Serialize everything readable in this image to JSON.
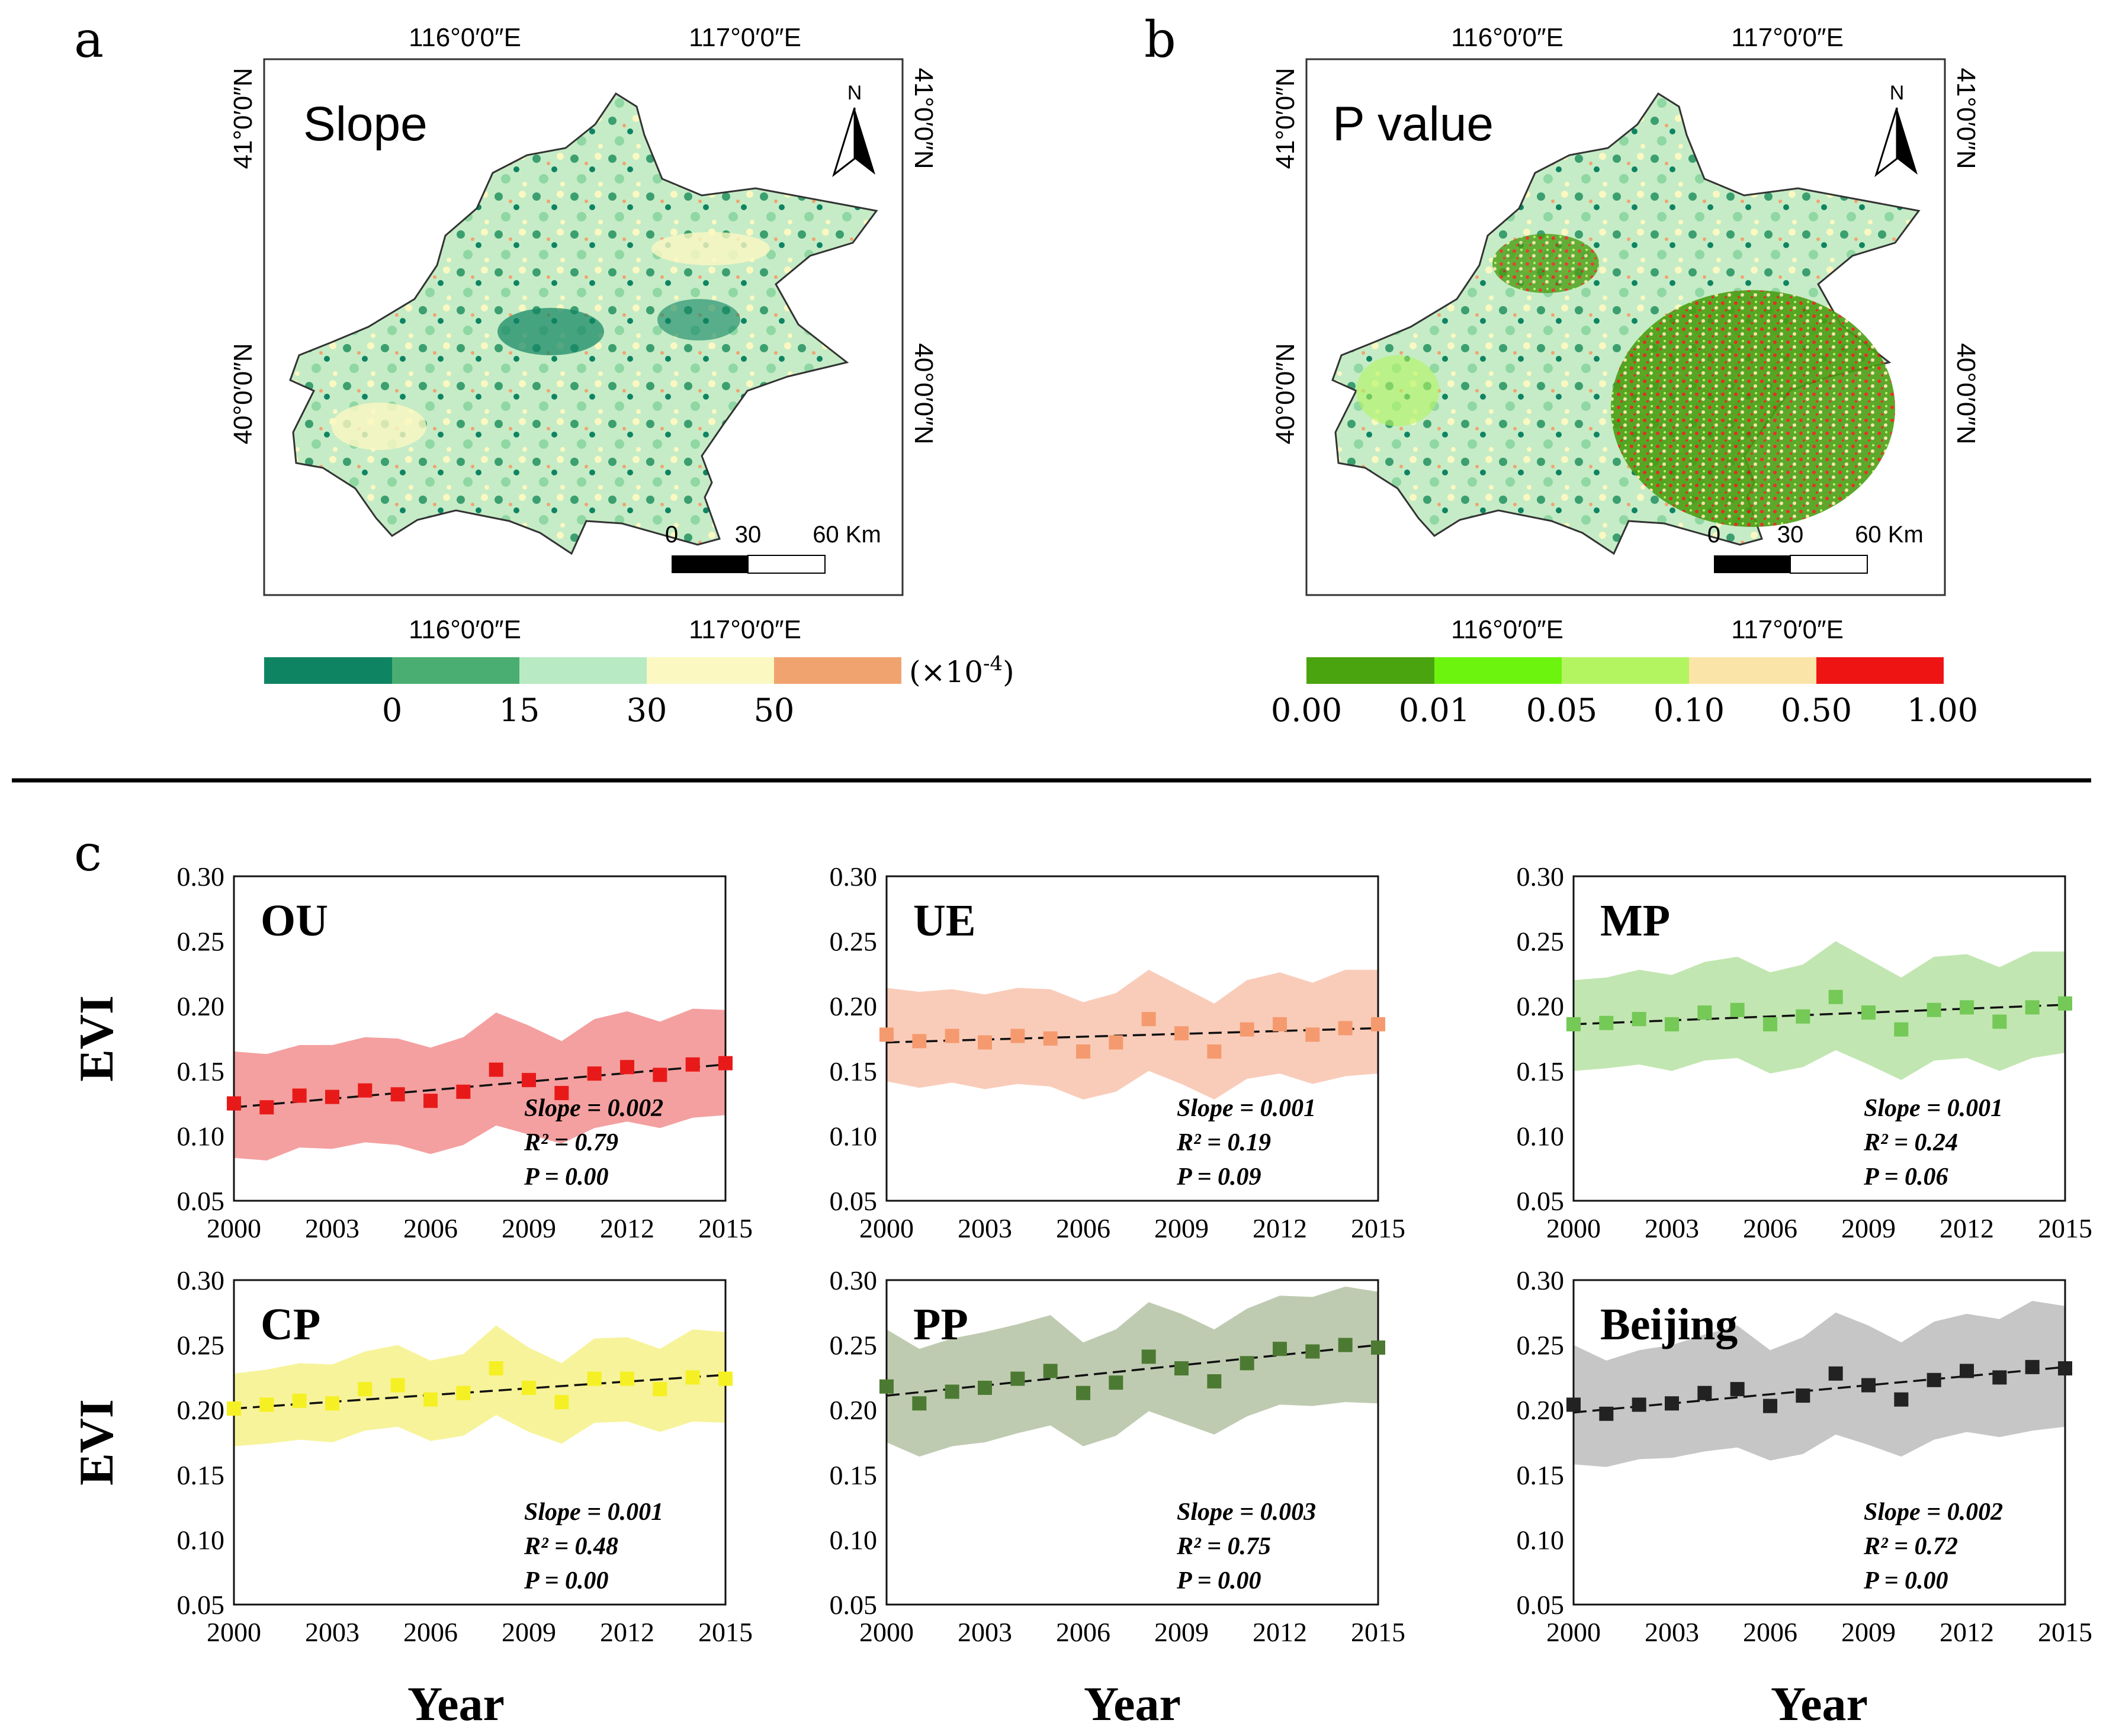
{
  "panels": {
    "a": {
      "letter": "a",
      "title": "Slope",
      "north": "N",
      "lon_labels": [
        "116°0′0″E",
        "117°0′0″E"
      ],
      "lat_labels": [
        "41°0′0″N",
        "40°0′0″N"
      ],
      "scale": {
        "ticks": [
          "0",
          "30",
          "60 Km"
        ]
      },
      "legend": {
        "colors": [
          "#0f8463",
          "#4aad72",
          "#b8eac3",
          "#fbf8c2",
          "#f1a36f"
        ],
        "tick_labels": [
          "0",
          "15",
          "30",
          "50"
        ],
        "unit": "(×10",
        "unit_exp": "-4",
        "unit_close": ")"
      }
    },
    "b": {
      "letter": "b",
      "title": "P value",
      "north": "N",
      "lon_labels": [
        "116°0′0″E",
        "117°0′0″E"
      ],
      "lat_labels": [
        "41°0′0″N",
        "40°0′0″N"
      ],
      "scale": {
        "ticks": [
          "0",
          "30",
          "60 Km"
        ]
      },
      "legend": {
        "colors": [
          "#4aa40f",
          "#6df40e",
          "#b3f561",
          "#fbe4a8",
          "#ef1414"
        ],
        "tick_labels": [
          "0.00",
          "0.01",
          "0.05",
          "0.10",
          "0.50",
          "1.00"
        ]
      }
    },
    "c": {
      "letter": "c"
    }
  },
  "colors": {
    "map_base_a": "#c5ecc6",
    "map_base_b": "#4a9e12"
  },
  "chart_data": [
    {
      "type": "scatter",
      "title": "OU",
      "xlabel": "Year",
      "ylabel": "EVI",
      "ylim": [
        0.05,
        0.3
      ],
      "x": [
        2000,
        2001,
        2002,
        2003,
        2004,
        2005,
        2006,
        2007,
        2008,
        2009,
        2010,
        2011,
        2012,
        2013,
        2014,
        2015
      ],
      "values": [
        0.125,
        0.122,
        0.131,
        0.13,
        0.135,
        0.132,
        0.127,
        0.134,
        0.151,
        0.143,
        0.133,
        0.148,
        0.153,
        0.147,
        0.155,
        0.156
      ],
      "band_upper": [
        0.165,
        0.163,
        0.17,
        0.17,
        0.176,
        0.175,
        0.168,
        0.176,
        0.195,
        0.185,
        0.173,
        0.19,
        0.196,
        0.188,
        0.198,
        0.197
      ],
      "band_lower": [
        0.083,
        0.081,
        0.091,
        0.09,
        0.095,
        0.093,
        0.086,
        0.093,
        0.108,
        0.101,
        0.094,
        0.106,
        0.111,
        0.106,
        0.114,
        0.116
      ],
      "trend": [
        0.122,
        0.155
      ],
      "annotations": [
        "Slope = 0.002",
        "R² = 0.79",
        "P = 0.00"
      ],
      "color": "#e81a19",
      "band_color": "#f4a0a0"
    },
    {
      "type": "scatter",
      "title": "UE",
      "xlabel": "Year",
      "ylabel": "EVI",
      "ylim": [
        0.05,
        0.3
      ],
      "x": [
        2000,
        2001,
        2002,
        2003,
        2004,
        2005,
        2006,
        2007,
        2008,
        2009,
        2010,
        2011,
        2012,
        2013,
        2014,
        2015
      ],
      "values": [
        0.178,
        0.173,
        0.177,
        0.172,
        0.177,
        0.175,
        0.165,
        0.172,
        0.19,
        0.179,
        0.165,
        0.182,
        0.186,
        0.178,
        0.183,
        0.186
      ],
      "band_upper": [
        0.214,
        0.211,
        0.213,
        0.209,
        0.214,
        0.213,
        0.203,
        0.21,
        0.228,
        0.215,
        0.202,
        0.22,
        0.226,
        0.218,
        0.228,
        0.228
      ],
      "band_lower": [
        0.142,
        0.137,
        0.141,
        0.136,
        0.14,
        0.138,
        0.128,
        0.134,
        0.15,
        0.14,
        0.128,
        0.144,
        0.148,
        0.14,
        0.146,
        0.148
      ],
      "trend": [
        0.172,
        0.183
      ],
      "annotations": [
        "Slope = 0.001",
        "R² = 0.19",
        "P = 0.09"
      ],
      "color": "#f59a6f",
      "band_color": "#f9ccb9"
    },
    {
      "type": "scatter",
      "title": "MP",
      "xlabel": "Year",
      "ylabel": "EVI",
      "ylim": [
        0.05,
        0.3
      ],
      "x": [
        2000,
        2001,
        2002,
        2003,
        2004,
        2005,
        2006,
        2007,
        2008,
        2009,
        2010,
        2011,
        2012,
        2013,
        2014,
        2015
      ],
      "values": [
        0.186,
        0.187,
        0.19,
        0.186,
        0.195,
        0.197,
        0.186,
        0.192,
        0.207,
        0.195,
        0.182,
        0.197,
        0.199,
        0.188,
        0.199,
        0.202
      ],
      "band_upper": [
        0.22,
        0.222,
        0.228,
        0.224,
        0.234,
        0.238,
        0.226,
        0.232,
        0.25,
        0.236,
        0.222,
        0.238,
        0.24,
        0.23,
        0.242,
        0.242
      ],
      "band_lower": [
        0.15,
        0.152,
        0.155,
        0.15,
        0.158,
        0.16,
        0.148,
        0.153,
        0.166,
        0.155,
        0.143,
        0.158,
        0.16,
        0.15,
        0.16,
        0.164
      ],
      "trend": [
        0.186,
        0.201
      ],
      "annotations": [
        "Slope = 0.001",
        "R² = 0.24",
        "P = 0.06"
      ],
      "color": "#74c957",
      "band_color": "#c2e6b1"
    },
    {
      "type": "scatter",
      "title": "CP",
      "xlabel": "Year",
      "ylabel": "EVI",
      "ylim": [
        0.05,
        0.3
      ],
      "x": [
        2000,
        2001,
        2002,
        2003,
        2004,
        2005,
        2006,
        2007,
        2008,
        2009,
        2010,
        2011,
        2012,
        2013,
        2014,
        2015
      ],
      "values": [
        0.201,
        0.204,
        0.207,
        0.205,
        0.216,
        0.219,
        0.208,
        0.213,
        0.232,
        0.217,
        0.206,
        0.224,
        0.224,
        0.216,
        0.225,
        0.224
      ],
      "band_upper": [
        0.228,
        0.231,
        0.236,
        0.235,
        0.245,
        0.25,
        0.238,
        0.243,
        0.265,
        0.248,
        0.236,
        0.255,
        0.256,
        0.247,
        0.262,
        0.26
      ],
      "band_lower": [
        0.172,
        0.174,
        0.177,
        0.175,
        0.184,
        0.187,
        0.176,
        0.18,
        0.196,
        0.183,
        0.174,
        0.19,
        0.191,
        0.183,
        0.191,
        0.19
      ],
      "trend": [
        0.201,
        0.227
      ],
      "annotations": [
        "Slope = 0.001",
        "R² = 0.48",
        "P = 0.00"
      ],
      "color": "#f5f024",
      "band_color": "#f7f39a"
    },
    {
      "type": "scatter",
      "title": "PP",
      "xlabel": "Year",
      "ylabel": "EVI",
      "ylim": [
        0.05,
        0.3
      ],
      "x": [
        2000,
        2001,
        2002,
        2003,
        2004,
        2005,
        2006,
        2007,
        2008,
        2009,
        2010,
        2011,
        2012,
        2013,
        2014,
        2015
      ],
      "values": [
        0.218,
        0.205,
        0.214,
        0.217,
        0.224,
        0.23,
        0.213,
        0.221,
        0.241,
        0.232,
        0.222,
        0.236,
        0.247,
        0.245,
        0.25,
        0.248
      ],
      "band_upper": [
        0.262,
        0.247,
        0.255,
        0.26,
        0.266,
        0.273,
        0.252,
        0.262,
        0.283,
        0.274,
        0.262,
        0.278,
        0.288,
        0.287,
        0.295,
        0.291
      ],
      "band_lower": [
        0.175,
        0.164,
        0.172,
        0.175,
        0.182,
        0.188,
        0.172,
        0.18,
        0.199,
        0.19,
        0.181,
        0.195,
        0.204,
        0.203,
        0.206,
        0.205
      ],
      "trend": [
        0.211,
        0.25
      ],
      "annotations": [
        "Slope = 0.003",
        "R² = 0.75",
        "P = 0.00"
      ],
      "color": "#4c7a32",
      "band_color": "#bfcbb1"
    },
    {
      "type": "scatter",
      "title": "Beijing",
      "xlabel": "Year",
      "ylabel": "EVI",
      "ylim": [
        0.05,
        0.3
      ],
      "x": [
        2000,
        2001,
        2002,
        2003,
        2004,
        2005,
        2006,
        2007,
        2008,
        2009,
        2010,
        2011,
        2012,
        2013,
        2014,
        2015
      ],
      "values": [
        0.204,
        0.197,
        0.204,
        0.205,
        0.213,
        0.216,
        0.203,
        0.211,
        0.228,
        0.219,
        0.208,
        0.223,
        0.23,
        0.225,
        0.233,
        0.232
      ],
      "band_upper": [
        0.25,
        0.238,
        0.246,
        0.25,
        0.258,
        0.265,
        0.246,
        0.256,
        0.275,
        0.265,
        0.252,
        0.268,
        0.274,
        0.27,
        0.284,
        0.28
      ],
      "band_lower": [
        0.158,
        0.156,
        0.162,
        0.163,
        0.168,
        0.171,
        0.161,
        0.166,
        0.181,
        0.173,
        0.164,
        0.177,
        0.183,
        0.179,
        0.184,
        0.187
      ],
      "trend": [
        0.198,
        0.233
      ],
      "annotations": [
        "Slope = 0.002",
        "R² = 0.72",
        "P = 0.00"
      ],
      "color": "#222222",
      "band_color": "#c6c6c6"
    }
  ],
  "axis": {
    "x_ticks": [
      "2000",
      "2003",
      "2006",
      "2009",
      "2012",
      "2015"
    ],
    "y_ticks": [
      "0.30",
      "0.25",
      "0.20",
      "0.15",
      "0.10",
      "0.05"
    ]
  }
}
